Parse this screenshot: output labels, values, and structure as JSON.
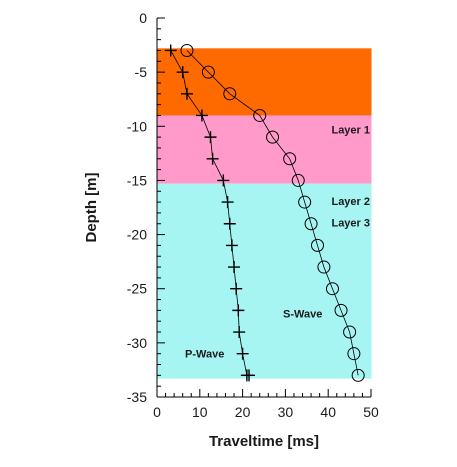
{
  "chart_data": {
    "type": "scatter",
    "title": "",
    "xlabel": "Traveltime [ms]",
    "ylabel": "Depth [m]",
    "xlim": [
      0,
      50
    ],
    "ylim": [
      -35,
      0
    ],
    "x_ticks": [
      0,
      10,
      20,
      30,
      40,
      50
    ],
    "y_ticks": [
      0,
      -5,
      -10,
      -15,
      -20,
      -25,
      -30,
      -35
    ],
    "x_tick_labels": [
      "0",
      "10",
      "20",
      "30",
      "40",
      "50"
    ],
    "y_tick_labels": [
      "0",
      "-5",
      "-10",
      "-15",
      "-20",
      "-25",
      "-30",
      "-35"
    ],
    "grid": false,
    "layers": [
      {
        "name": "Layer 1",
        "top": -2.8,
        "bottom": -9,
        "color": "#ff6a00"
      },
      {
        "name": "Layer 2",
        "top": -9,
        "bottom": -15.3,
        "color": "#ff9acb"
      },
      {
        "name": "Layer 3",
        "top": -15.3,
        "bottom": -33.3,
        "color": "#a6f5f3"
      }
    ],
    "series": [
      {
        "name": "P-Wave",
        "marker": "plus",
        "x": [
          3.2,
          6.0,
          7.0,
          10.5,
          12.5,
          13.0,
          15.5,
          16.5,
          17.0,
          17.5,
          18.0,
          18.5,
          19.0,
          19.2,
          20.0,
          21.0,
          21.5
        ],
        "y": [
          -3,
          -5,
          -7,
          -9,
          -11,
          -13,
          -15,
          -17,
          -19,
          -21,
          -23,
          -25,
          -27,
          -29,
          -31,
          -33,
          -33
        ]
      },
      {
        "name": "S-Wave",
        "marker": "circle",
        "x": [
          7.0,
          12.0,
          17.0,
          24.0,
          27.0,
          31.0,
          33.0,
          34.5,
          36.0,
          37.5,
          39.0,
          41.0,
          43.0,
          45.0,
          46.0,
          47.0
        ],
        "y": [
          -3,
          -5,
          -7,
          -9,
          -11,
          -13,
          -15,
          -17,
          -19,
          -21,
          -23,
          -25,
          -27,
          -29,
          -31,
          -33
        ]
      }
    ]
  }
}
